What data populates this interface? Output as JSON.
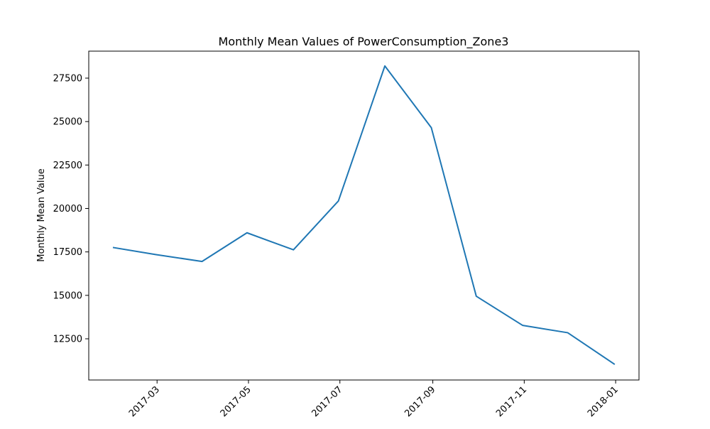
{
  "chart_data": {
    "type": "line",
    "title": "Monthly Mean Values of PowerConsumption_Zone3",
    "xlabel": "",
    "ylabel": "Monthly Mean Value",
    "x_tick_labels": [
      "2017-03",
      "2017-05",
      "2017-07",
      "2017-09",
      "2017-11",
      "2018-01"
    ],
    "y_tick_values": [
      12500,
      15000,
      17500,
      20000,
      22500,
      25000,
      27500
    ],
    "y_tick_labels": [
      "12500",
      "15000",
      "17500",
      "20000",
      "22500",
      "25000",
      "27500"
    ],
    "grid": false,
    "series": [
      {
        "color": "#1f77b4",
        "points": [
          {
            "x": "2017-01-31",
            "y": 17750
          },
          {
            "x": "2017-02-28",
            "y": 17350
          },
          {
            "x": "2017-03-31",
            "y": 16950
          },
          {
            "x": "2017-04-30",
            "y": 18600
          },
          {
            "x": "2017-05-31",
            "y": 17620
          },
          {
            "x": "2017-06-30",
            "y": 20430
          },
          {
            "x": "2017-07-31",
            "y": 28200
          },
          {
            "x": "2017-08-31",
            "y": 24650
          },
          {
            "x": "2017-09-30",
            "y": 14950
          },
          {
            "x": "2017-10-31",
            "y": 13270
          },
          {
            "x": "2017-11-30",
            "y": 12850
          },
          {
            "x": "2017-12-31",
            "y": 11050
          }
        ]
      }
    ]
  }
}
